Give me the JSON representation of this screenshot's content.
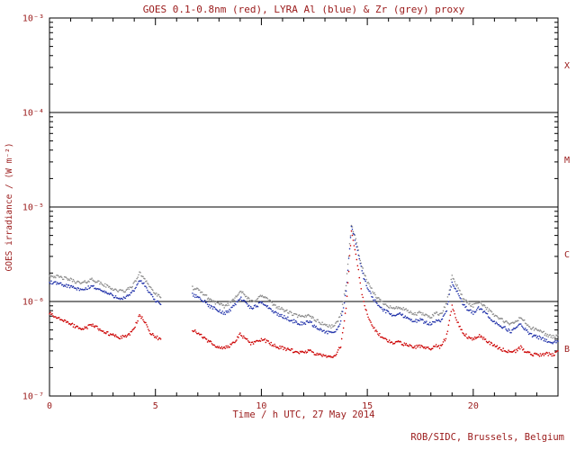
{
  "footer": "ROB/SIDC, Brussels, Belgium",
  "colors": {
    "text": "#9a1a1a",
    "frame": "#000000",
    "goes_red": "#cc0000",
    "lyra_al_blue": "#2233aa",
    "lyra_zr_grey": "#8c8c8c"
  },
  "chart_data": {
    "type": "line",
    "title": "GOES 0.1-0.8nm (red), LYRA Al (blue) & Zr (grey) proxy",
    "xlabel": "Time / h UTC, 27 May 2014",
    "ylabel": "GOES irradiance / (W m⁻²)",
    "grid": false,
    "legend": "encoded in title colors",
    "x_range": [
      0,
      24
    ],
    "y_scale": "log10",
    "y_range": [
      1e-07,
      0.001
    ],
    "x_ticks": [
      {
        "label": "0",
        "value": 0
      },
      {
        "label": "5",
        "value": 5
      },
      {
        "label": "10",
        "value": 10
      },
      {
        "label": "15",
        "value": 15
      },
      {
        "label": "20",
        "value": 20
      }
    ],
    "x_tick_minor_step": 1,
    "y_ticks": [
      {
        "label": "10⁻³",
        "value": 0.001
      },
      {
        "label": "10⁻⁴",
        "value": 0.0001
      },
      {
        "label": "10⁻⁵",
        "value": 1e-05
      },
      {
        "label": "10⁻⁶",
        "value": 1e-06
      },
      {
        "label": "10⁻⁷",
        "value": 1e-07
      }
    ],
    "flare_class_lines": [
      0.0001,
      1e-05,
      1e-06
    ],
    "flare_class_labels": [
      {
        "label": "X",
        "value": 0.000316
      },
      {
        "label": "M",
        "value": 3.16e-05
      },
      {
        "label": "C",
        "value": 3.16e-06
      },
      {
        "label": "B",
        "value": 3.16e-07
      }
    ],
    "x": [
      0,
      0.25,
      0.5,
      0.75,
      1,
      1.25,
      1.5,
      1.75,
      2,
      2.25,
      2.5,
      2.75,
      3,
      3.25,
      3.5,
      3.75,
      4,
      4.25,
      4.5,
      4.75,
      5,
      5.25,
      5.5,
      5.75,
      6,
      6.25,
      6.5,
      6.75,
      7,
      7.25,
      7.5,
      7.75,
      8,
      8.25,
      8.5,
      8.75,
      9,
      9.25,
      9.5,
      9.75,
      10,
      10.25,
      10.5,
      10.75,
      11,
      11.25,
      11.5,
      11.75,
      12,
      12.25,
      12.5,
      12.75,
      13,
      13.25,
      13.5,
      13.75,
      14,
      14.25,
      14.5,
      14.75,
      15,
      15.25,
      15.5,
      15.75,
      16,
      16.25,
      16.5,
      16.75,
      17,
      17.25,
      17.5,
      17.75,
      18,
      18.25,
      18.5,
      18.75,
      19,
      19.25,
      19.5,
      19.75,
      20,
      20.25,
      20.5,
      20.75,
      21,
      21.25,
      21.5,
      21.75,
      22,
      22.25,
      22.5,
      22.75,
      23,
      23.25,
      23.5,
      23.75,
      24
    ],
    "series": [
      {
        "id": "lyra-zr",
        "name": "LYRA Zr proxy",
        "color_key": "lyra_zr_grey",
        "scale": 1e-06,
        "values_unit": "W m^-2 (after scale)",
        "values": [
          1.9,
          1.85,
          1.8,
          1.75,
          1.7,
          1.62,
          1.55,
          1.62,
          1.72,
          1.62,
          1.52,
          1.44,
          1.36,
          1.3,
          1.28,
          1.36,
          1.55,
          2.0,
          1.75,
          1.42,
          1.2,
          1.1,
          null,
          null,
          null,
          null,
          null,
          1.4,
          1.32,
          1.22,
          1.08,
          1.0,
          0.93,
          0.89,
          0.96,
          1.1,
          1.3,
          1.14,
          1.0,
          1.05,
          1.15,
          1.08,
          0.95,
          0.88,
          0.82,
          0.78,
          0.73,
          0.7,
          0.68,
          0.73,
          0.65,
          0.6,
          0.57,
          0.54,
          0.57,
          0.72,
          1.5,
          6.5,
          4.2,
          2.3,
          1.6,
          1.28,
          1.08,
          0.97,
          0.9,
          0.84,
          0.87,
          0.82,
          0.77,
          0.73,
          0.76,
          0.71,
          0.69,
          0.76,
          0.73,
          0.97,
          1.85,
          1.45,
          1.1,
          0.96,
          0.9,
          1.0,
          0.92,
          0.8,
          0.72,
          0.66,
          0.61,
          0.57,
          0.61,
          0.68,
          0.58,
          0.52,
          0.5,
          0.48,
          0.44,
          0.42,
          0.44
        ]
      },
      {
        "id": "lyra-al",
        "name": "LYRA Al proxy",
        "color_key": "lyra_al_blue",
        "scale": 1e-06,
        "values_unit": "W m^-2 (after scale)",
        "values": [
          1.6,
          1.56,
          1.52,
          1.48,
          1.44,
          1.37,
          1.31,
          1.37,
          1.46,
          1.37,
          1.29,
          1.22,
          1.15,
          1.1,
          1.08,
          1.15,
          1.31,
          1.7,
          1.48,
          1.2,
          1.02,
          0.93,
          null,
          null,
          null,
          null,
          null,
          1.18,
          1.12,
          1.03,
          0.91,
          0.85,
          0.79,
          0.75,
          0.81,
          0.93,
          1.1,
          0.97,
          0.85,
          0.89,
          0.97,
          0.91,
          0.8,
          0.74,
          0.69,
          0.66,
          0.62,
          0.59,
          0.58,
          0.62,
          0.55,
          0.51,
          0.48,
          0.46,
          0.48,
          0.61,
          1.27,
          6.2,
          3.9,
          2.05,
          1.4,
          1.1,
          0.92,
          0.82,
          0.76,
          0.71,
          0.74,
          0.7,
          0.65,
          0.62,
          0.64,
          0.6,
          0.58,
          0.64,
          0.62,
          0.82,
          1.6,
          1.25,
          0.94,
          0.81,
          0.76,
          0.85,
          0.78,
          0.68,
          0.61,
          0.56,
          0.52,
          0.48,
          0.52,
          0.58,
          0.49,
          0.44,
          0.42,
          0.41,
          0.38,
          0.36,
          0.38
        ]
      },
      {
        "id": "goes-xray",
        "name": "GOES 0.1-0.8nm",
        "color_key": "goes_red",
        "scale": 1e-06,
        "values_unit": "W m^-2 (after scale)",
        "values": [
          0.75,
          0.7,
          0.65,
          0.61,
          0.58,
          0.54,
          0.5,
          0.53,
          0.57,
          0.53,
          0.49,
          0.46,
          0.44,
          0.42,
          0.42,
          0.45,
          0.52,
          0.72,
          0.61,
          0.47,
          0.42,
          0.4,
          null,
          null,
          null,
          null,
          null,
          0.5,
          0.46,
          0.42,
          0.38,
          0.35,
          0.33,
          0.32,
          0.34,
          0.38,
          0.45,
          0.4,
          0.36,
          0.37,
          0.4,
          0.38,
          0.35,
          0.33,
          0.32,
          0.31,
          0.3,
          0.29,
          0.29,
          0.3,
          0.28,
          0.27,
          0.27,
          0.26,
          0.27,
          0.34,
          0.85,
          5.5,
          2.8,
          1.2,
          0.72,
          0.54,
          0.46,
          0.41,
          0.38,
          0.36,
          0.37,
          0.35,
          0.34,
          0.33,
          0.34,
          0.32,
          0.32,
          0.34,
          0.33,
          0.44,
          0.88,
          0.62,
          0.47,
          0.42,
          0.4,
          0.44,
          0.41,
          0.37,
          0.34,
          0.32,
          0.3,
          0.29,
          0.3,
          0.33,
          0.29,
          0.28,
          0.27,
          0.27,
          0.28,
          0.27,
          0.3
        ]
      }
    ]
  }
}
